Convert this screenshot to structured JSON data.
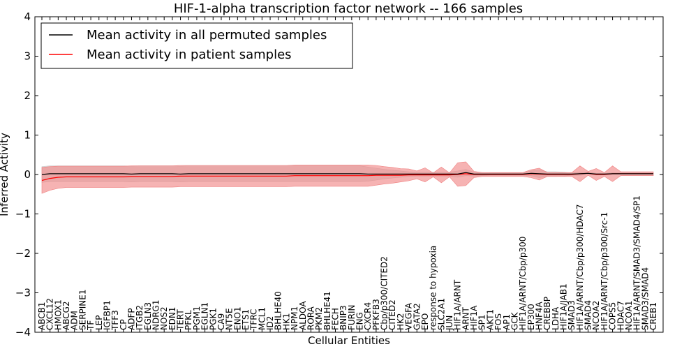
{
  "chart_data": {
    "type": "line",
    "title": "HIF-1-alpha transcription factor network -- 166 samples",
    "xlabel": "Cellular Entities",
    "ylabel": "Inferred Activity",
    "ylim": [
      -4,
      4
    ],
    "yticks": [
      {
        "value": 4,
        "label": "4"
      },
      {
        "value": 3,
        "label": "3"
      },
      {
        "value": 2,
        "label": "2"
      },
      {
        "value": 1,
        "label": "1"
      },
      {
        "value": 0,
        "label": "0"
      },
      {
        "value": -1,
        "label": "−1"
      },
      {
        "value": -2,
        "label": "−2"
      },
      {
        "value": -3,
        "label": "−3"
      },
      {
        "value": -4,
        "label": "−4"
      }
    ],
    "legend_position": "top-left",
    "categories": [
      "ABCB1",
      "CXCL12",
      "HMOX1",
      "ABCG2",
      "ADM",
      "SERPINE1",
      "TF",
      "LEP",
      "IGFBP1",
      "TFF3",
      "CP",
      "ADFP",
      "ITGB2",
      "EGLN3",
      "NDRG1",
      "NOS2",
      "EDN1",
      "TERT",
      "PFKL",
      "PGM1",
      "EGLN1",
      "PGK1",
      "CA9",
      "NT5E",
      "ENO1",
      "ETS1",
      "TFRC",
      "MCL1",
      "ID2",
      "BHLHE40",
      "HK1",
      "NPM1",
      "ALDOA",
      "RORA",
      "PKM2",
      "BHLHE41",
      "FECH",
      "BNIP3",
      "FURIN",
      "ENG",
      "CXCR4",
      "PFKFB3",
      "Cbp/p300/CITED2",
      "CITED2",
      "HK2",
      "VEGFA",
      "GATA2",
      "EPO",
      "response to hypoxia",
      "SLC2A1",
      "JUN",
      "HIF1A/ARNT",
      "ARNT",
      "HIF1A",
      "SP1",
      "AKT1",
      "FOS",
      "AP1",
      "GCK",
      "HIF1A/ARNT/Cbp/p300",
      "EP300",
      "HNF4A",
      "CREBBP",
      "LDHA",
      "HIF1A/JAB1",
      "SMAD3",
      "HIF1A/ARNT/Cbp/p300/HDAC7",
      "SMAD4",
      "NCOA2",
      "HIF1A/ARNT/Cbp/p300/Src-1",
      "COPS5",
      "HDAC7",
      "NCOA1",
      "HIF1A/ARNT/SMAD3/SMAD4/SP1",
      "SMAD3/SMAD4",
      "CREB1"
    ],
    "series": [
      {
        "name": "Mean activity in all permuted samples",
        "color": "#000000",
        "band_color": "#c8c8c8",
        "values": [
          0.0,
          0.02,
          0.02,
          0.02,
          0.02,
          0.02,
          0.02,
          0.02,
          0.02,
          0.02,
          0.02,
          0.01,
          0.02,
          0.02,
          0.02,
          0.02,
          0.02,
          0.01,
          0.02,
          0.02,
          0.02,
          0.02,
          0.02,
          0.02,
          0.02,
          0.02,
          0.02,
          0.02,
          0.02,
          0.02,
          0.02,
          0.02,
          0.02,
          0.02,
          0.02,
          0.02,
          0.02,
          0.02,
          0.02,
          0.02,
          0.01,
          0.01,
          0.01,
          0.01,
          0.01,
          0.01,
          0.01,
          0.01,
          0.01,
          0.01,
          0.01,
          0.01,
          0.05,
          0.01,
          0.01,
          0.01,
          0.01,
          0.01,
          0.01,
          0.01,
          0.03,
          0.02,
          0.01,
          0.01,
          0.01,
          0.01,
          0.02,
          0.03,
          0.01,
          0.01,
          0.02,
          0.02,
          0.02,
          0.02,
          0.02,
          0.02
        ],
        "band_half_width": [
          0.2,
          0.2,
          0.2,
          0.2,
          0.2,
          0.2,
          0.2,
          0.2,
          0.2,
          0.2,
          0.2,
          0.2,
          0.2,
          0.2,
          0.2,
          0.2,
          0.2,
          0.2,
          0.2,
          0.2,
          0.2,
          0.2,
          0.2,
          0.2,
          0.2,
          0.2,
          0.2,
          0.2,
          0.2,
          0.2,
          0.2,
          0.2,
          0.2,
          0.2,
          0.2,
          0.2,
          0.2,
          0.2,
          0.2,
          0.2,
          0.18,
          0.15,
          0.12,
          0.1,
          0.08,
          0.06,
          0.05,
          0.05,
          0.05,
          0.05,
          0.05,
          0.08,
          0.08,
          0.05,
          0.04,
          0.03,
          0.03,
          0.03,
          0.03,
          0.03,
          0.06,
          0.1,
          0.06,
          0.06,
          0.05,
          0.03,
          0.04,
          0.03,
          0.02,
          0.02,
          0.02,
          0.02,
          0.02,
          0.02,
          0.02,
          0.02
        ]
      },
      {
        "name": "Mean activity in patient samples",
        "color": "#ff0000",
        "band_color": "#f08080",
        "values": [
          -0.15,
          -0.1,
          -0.07,
          -0.06,
          -0.06,
          -0.06,
          -0.06,
          -0.06,
          -0.06,
          -0.06,
          -0.06,
          -0.05,
          -0.05,
          -0.05,
          -0.05,
          -0.05,
          -0.05,
          -0.04,
          -0.04,
          -0.04,
          -0.04,
          -0.04,
          -0.04,
          -0.04,
          -0.04,
          -0.04,
          -0.04,
          -0.04,
          -0.04,
          -0.04,
          -0.04,
          -0.03,
          -0.03,
          -0.03,
          -0.03,
          -0.03,
          -0.03,
          -0.03,
          -0.03,
          -0.03,
          -0.03,
          -0.02,
          -0.02,
          -0.02,
          -0.02,
          -0.01,
          -0.01,
          -0.01,
          -0.01,
          -0.01,
          -0.01,
          0.0,
          0.02,
          0.0,
          0.0,
          0.0,
          0.0,
          0.0,
          0.0,
          0.0,
          0.02,
          0.01,
          0.0,
          0.0,
          0.0,
          0.0,
          0.02,
          0.03,
          0.0,
          0.0,
          0.02,
          0.02,
          0.02,
          0.02,
          0.02,
          0.02
        ],
        "band_half_width": [
          0.33,
          0.3,
          0.28,
          0.27,
          0.27,
          0.27,
          0.27,
          0.27,
          0.27,
          0.27,
          0.27,
          0.27,
          0.27,
          0.27,
          0.27,
          0.27,
          0.27,
          0.27,
          0.27,
          0.27,
          0.27,
          0.27,
          0.27,
          0.27,
          0.27,
          0.27,
          0.27,
          0.27,
          0.27,
          0.27,
          0.27,
          0.27,
          0.27,
          0.27,
          0.27,
          0.27,
          0.27,
          0.27,
          0.27,
          0.27,
          0.27,
          0.25,
          0.22,
          0.2,
          0.17,
          0.15,
          0.1,
          0.18,
          0.05,
          0.2,
          0.05,
          0.3,
          0.3,
          0.08,
          0.05,
          0.05,
          0.05,
          0.05,
          0.05,
          0.05,
          0.1,
          0.15,
          0.05,
          0.05,
          0.05,
          0.05,
          0.2,
          0.05,
          0.15,
          0.05,
          0.2,
          0.05,
          0.05,
          0.05,
          0.05,
          0.05
        ]
      }
    ]
  }
}
